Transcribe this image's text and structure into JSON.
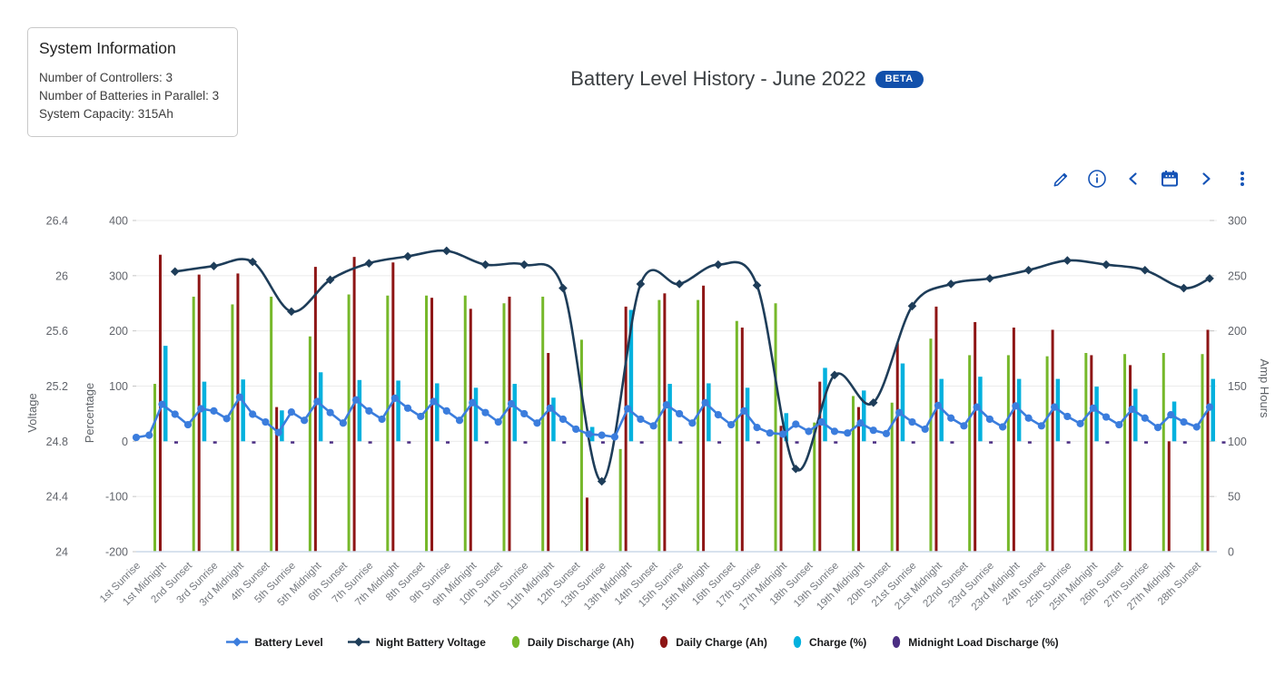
{
  "system_info": {
    "title": "System Information",
    "lines": [
      "Number of Controllers: 3",
      "Number of Batteries in Parallel: 3",
      "System Capacity: 315Ah"
    ]
  },
  "header": {
    "title": "Battery Level History - June 2022",
    "badge": "BETA"
  },
  "toolbar": {
    "icons": [
      "edit",
      "info",
      "previous-period",
      "calendar",
      "next-period",
      "more-options"
    ],
    "icon_color": "#1553b6"
  },
  "legend": [
    {
      "label": "Battery Level",
      "color": "#3b7ddd",
      "marker": "line-diamond"
    },
    {
      "label": "Night Battery Voltage",
      "color": "#1e3d59",
      "marker": "line-diamond"
    },
    {
      "label": "Daily Discharge (Ah)",
      "color": "#76b82a",
      "marker": "ellipse"
    },
    {
      "label": "Daily Charge (Ah)",
      "color": "#8e1515",
      "marker": "ellipse"
    },
    {
      "label": "Charge (%)",
      "color": "#03b1de",
      "marker": "ellipse"
    },
    {
      "label": "Midnight Load Discharge (%)",
      "color": "#4b2e83",
      "marker": "ellipse"
    }
  ],
  "chart_data": {
    "type": "line",
    "title": "Battery Level History - June 2022",
    "grid": true,
    "axes": {
      "voltage": {
        "title": "Voltage",
        "range": [
          24,
          26.4
        ],
        "ticks": [
          "26.4",
          "26",
          "25.6",
          "25.2",
          "24.8",
          "24.4",
          "24"
        ]
      },
      "percentage": {
        "title": "Percentage",
        "range": [
          -200,
          400
        ],
        "ticks": [
          "400",
          "300",
          "200",
          "100",
          "0",
          "-100",
          "-200"
        ]
      },
      "amp_hours": {
        "title": "Amp Hours",
        "range": [
          0,
          300
        ],
        "ticks": [
          "300",
          "250",
          "200",
          "150",
          "100",
          "50",
          "0"
        ]
      }
    },
    "x_labels": [
      "1st Sunrise",
      "1st Midnight",
      "2nd Sunset",
      "3rd Sunrise",
      "3rd Midnight",
      "4th Sunset",
      "5th Sunrise",
      "5th Midnight",
      "6th Sunset",
      "7th Sunrise",
      "7th Midnight",
      "8th Sunset",
      "9th Sunrise",
      "9th Midnight",
      "10th Sunset",
      "11th Sunrise",
      "11th Midnight",
      "12th Sunset",
      "13th Sunrise",
      "13th Midnight",
      "14th Sunset",
      "15th Sunrise",
      "15th Midnight",
      "16th Sunset",
      "17th Sunrise",
      "17th Midnight",
      "18th Sunset",
      "19th Sunrise",
      "19th Midnight",
      "20th Sunset",
      "21st Sunrise",
      "21st Midnight",
      "22nd Sunset",
      "23rd Sunrise",
      "23rd Midnight",
      "24th Sunset",
      "25th Sunrise",
      "25th Midnight",
      "26th Sunset",
      "27th Sunrise",
      "27th Midnight",
      "28th Sunset"
    ],
    "series": [
      {
        "name": "Battery Level",
        "axis": "percentage",
        "style": "line-dots",
        "color": "#3b7ddd",
        "values": [
          7,
          11,
          67,
          49,
          30,
          59,
          55,
          41,
          80,
          49,
          35,
          16,
          53,
          38,
          72,
          52,
          33,
          75,
          55,
          40,
          78,
          60,
          45,
          72,
          55,
          38,
          70,
          52,
          35,
          68,
          50,
          33,
          60,
          40,
          22,
          13,
          11,
          8,
          59,
          40,
          28,
          66,
          50,
          33,
          70,
          48,
          30,
          55,
          25,
          15,
          13,
          31,
          18,
          35,
          18,
          15,
          33,
          20,
          14,
          52,
          35,
          22,
          65,
          42,
          28,
          62,
          40,
          26,
          64,
          42,
          28,
          62,
          45,
          32,
          60,
          44,
          30,
          58,
          42,
          25,
          48,
          35,
          26,
          62
        ]
      },
      {
        "name": "Night Battery Voltage",
        "axis": "voltage",
        "style": "smooth-line-diamonds",
        "color": "#1e3d59",
        "values": [
          26.03,
          26.07,
          26.1,
          25.74,
          25.97,
          26.09,
          26.14,
          26.18,
          26.08,
          26.08,
          25.91,
          24.51,
          25.94,
          25.94,
          26.08,
          25.93,
          24.6,
          25.28,
          25.08,
          25.78,
          25.94,
          25.98,
          26.04,
          26.11,
          26.08,
          26.04,
          25.91,
          25.98
        ]
      },
      {
        "name": "Daily Discharge (Ah)",
        "axis": "amp_hours",
        "style": "bar",
        "color": "#76b82a",
        "values": [
          152,
          231,
          224,
          231,
          195,
          233,
          232,
          232,
          232,
          225,
          231,
          192,
          93,
          228,
          228,
          209,
          225,
          117,
          141,
          135,
          193,
          178,
          178,
          177,
          180,
          179,
          180,
          179
        ]
      },
      {
        "name": "Daily Charge (Ah)",
        "axis": "amp_hours",
        "style": "bar",
        "color": "#8e1515",
        "values": [
          269,
          251,
          252,
          131,
          258,
          267,
          262,
          230,
          220,
          231,
          180,
          49,
          222,
          234,
          241,
          203,
          114,
          154,
          131,
          189,
          222,
          208,
          203,
          201,
          178,
          169,
          100,
          201
        ]
      },
      {
        "name": "Charge (%)",
        "axis": "percentage",
        "style": "bar",
        "color": "#03b1de",
        "values": [
          173,
          108,
          112,
          56,
          125,
          111,
          110,
          105,
          97,
          104,
          79,
          26,
          238,
          104,
          105,
          97,
          51,
          133,
          92,
          141,
          113,
          117,
          113,
          113,
          99,
          95,
          72,
          113
        ]
      },
      {
        "name": "Midnight Load Discharge (%)",
        "axis": "percentage",
        "style": "bar",
        "color": "#4b2e83",
        "values": [
          1,
          1,
          1,
          1,
          1,
          1,
          1,
          1,
          1,
          1,
          1,
          1,
          1,
          1,
          1,
          1,
          1,
          1,
          1,
          1,
          1,
          1,
          1,
          1,
          1,
          1,
          1,
          1
        ]
      }
    ]
  }
}
